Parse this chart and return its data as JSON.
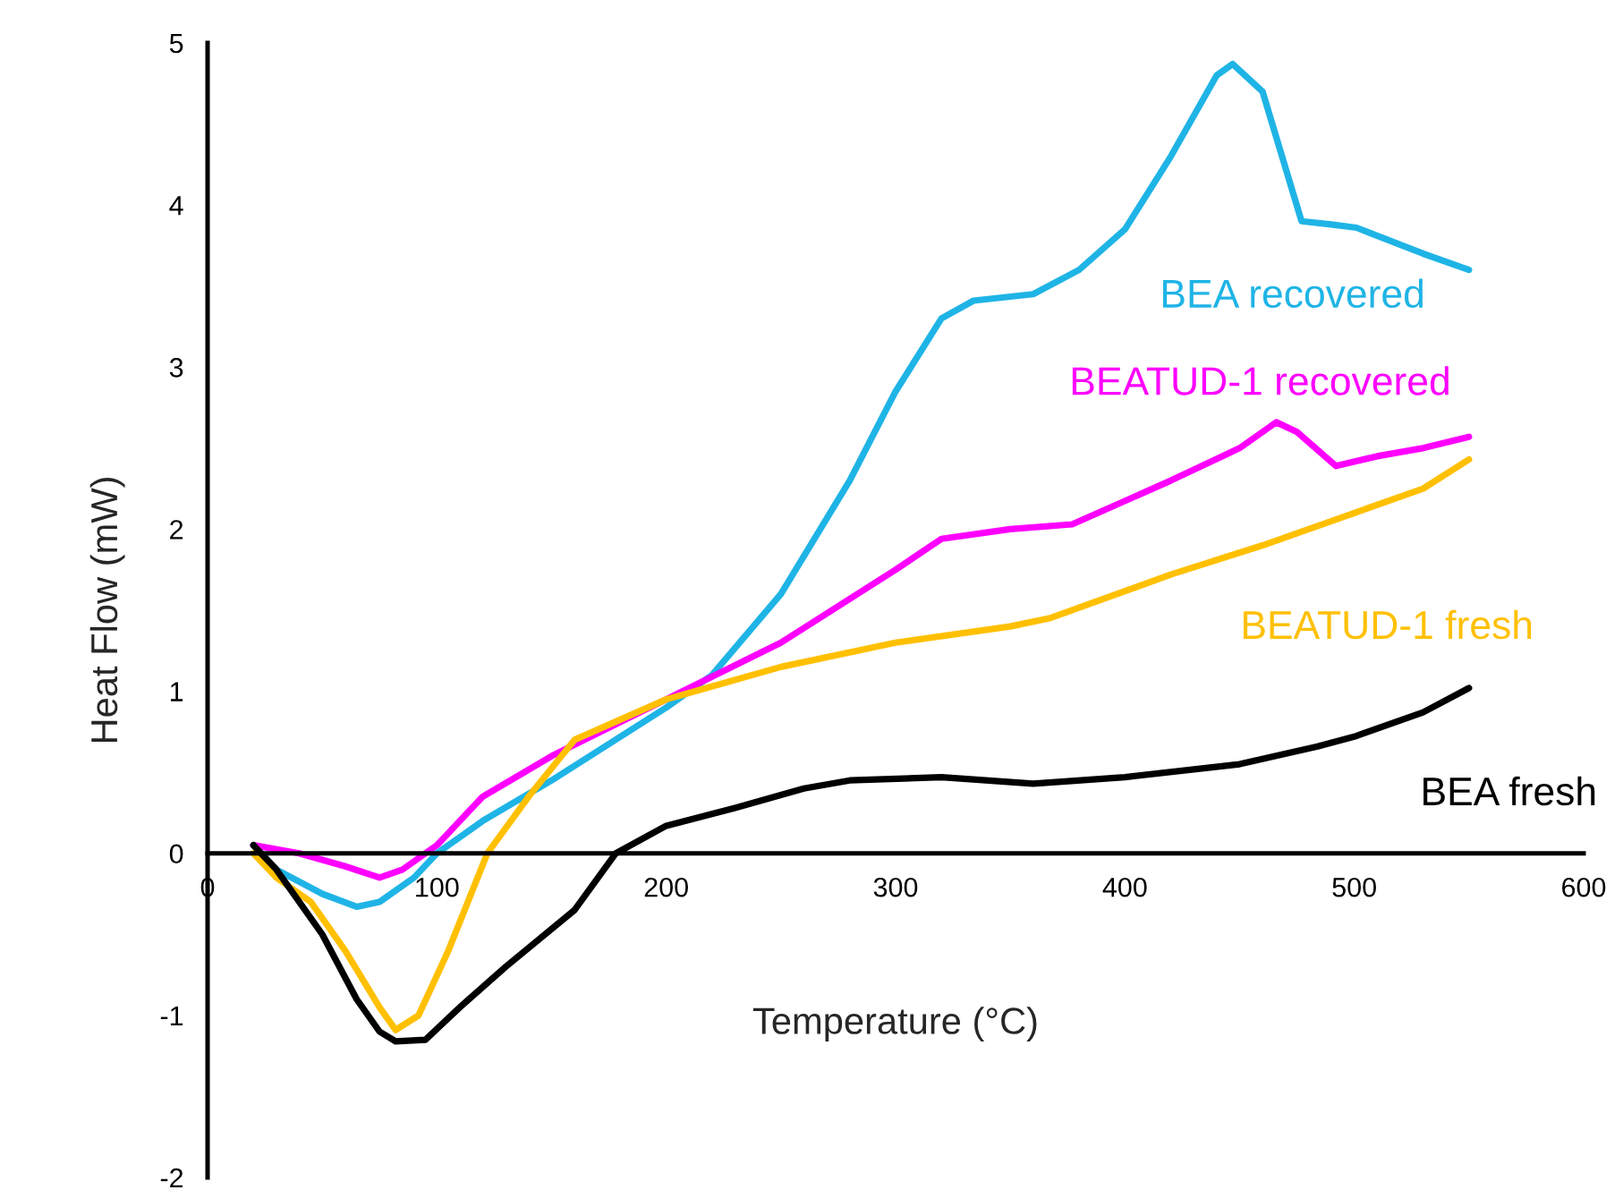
{
  "chart_data": {
    "type": "line",
    "xlabel": "Temperature (°C)",
    "ylabel": "Heat Flow (mW)",
    "xlim": [
      0,
      600
    ],
    "xticks": [
      0,
      100,
      200,
      300,
      400,
      500,
      600
    ],
    "ylim": [
      -2,
      5
    ],
    "yticks": [
      -2,
      -1,
      0,
      1,
      2,
      3,
      4,
      5
    ],
    "grid": false,
    "legend": false,
    "marker": "none",
    "line_style": "solid",
    "series": [
      {
        "name": "BEA recovered",
        "color": "#1fb4e6",
        "x": [
          20,
          30,
          50,
          65,
          75,
          90,
          100,
          120,
          150,
          200,
          220,
          250,
          280,
          300,
          320,
          334,
          360,
          380,
          400,
          420,
          440,
          447,
          460,
          477,
          490,
          501,
          530,
          550
        ],
        "values": [
          0.05,
          -0.1,
          -0.25,
          -0.33,
          -0.3,
          -0.15,
          0.0,
          0.2,
          0.45,
          0.9,
          1.1,
          1.6,
          2.3,
          2.85,
          3.3,
          3.41,
          3.45,
          3.6,
          3.85,
          4.3,
          4.8,
          4.87,
          4.7,
          3.9,
          3.88,
          3.86,
          3.7,
          3.6
        ]
      },
      {
        "name": "BEATUD-1 recovered",
        "color": "#ff00ff",
        "x": [
          20,
          40,
          60,
          75,
          85,
          100,
          120,
          150,
          200,
          250,
          300,
          320,
          350,
          377,
          420,
          450,
          466,
          475,
          492,
          510,
          530,
          550
        ],
        "values": [
          0.05,
          0.0,
          -0.08,
          -0.15,
          -0.1,
          0.05,
          0.35,
          0.6,
          0.95,
          1.3,
          1.75,
          1.94,
          2.0,
          2.03,
          2.3,
          2.5,
          2.66,
          2.6,
          2.39,
          2.45,
          2.5,
          2.57
        ]
      },
      {
        "name": "BEATUD-1 fresh",
        "color": "#ffc000",
        "x": [
          20,
          30,
          45,
          60,
          75,
          82,
          92,
          105,
          122,
          140,
          160,
          200,
          250,
          300,
          350,
          367,
          420,
          460,
          500,
          530,
          550
        ],
        "values": [
          0.0,
          -0.15,
          -0.3,
          -0.6,
          -0.95,
          -1.09,
          -1.0,
          -0.6,
          0.0,
          0.35,
          0.7,
          0.95,
          1.15,
          1.3,
          1.4,
          1.45,
          1.72,
          1.9,
          2.1,
          2.25,
          2.43
        ]
      },
      {
        "name": "BEA fresh",
        "color": "#000000",
        "x": [
          20,
          30,
          50,
          65,
          75,
          82,
          95,
          110,
          130,
          160,
          178,
          200,
          230,
          260,
          280,
          320,
          360,
          400,
          450,
          484,
          500,
          530,
          550
        ],
        "values": [
          0.05,
          -0.1,
          -0.5,
          -0.9,
          -1.1,
          -1.16,
          -1.15,
          -0.95,
          -0.7,
          -0.35,
          0.0,
          0.17,
          0.28,
          0.4,
          0.45,
          0.47,
          0.43,
          0.47,
          0.55,
          0.66,
          0.72,
          0.87,
          1.02
        ]
      }
    ]
  }
}
